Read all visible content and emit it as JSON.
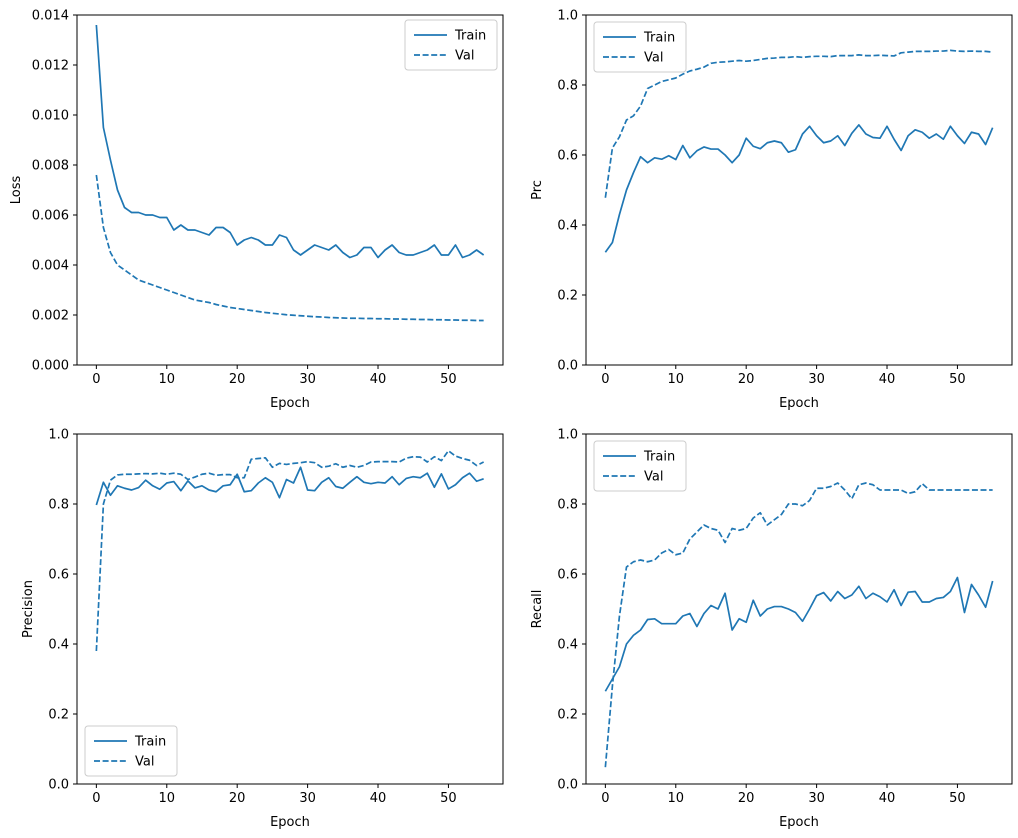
{
  "figure": {
    "background": "#ffffff",
    "line_color": "#1f77b4",
    "spine_color": "#000000",
    "legend_border_color": "#cccccc",
    "legend_background": "#ffffff",
    "train_label": "Train",
    "val_label": "Val"
  },
  "epochs": [
    0,
    1,
    2,
    3,
    4,
    5,
    6,
    7,
    8,
    9,
    10,
    11,
    12,
    13,
    14,
    15,
    16,
    17,
    18,
    19,
    20,
    21,
    22,
    23,
    24,
    25,
    26,
    27,
    28,
    29,
    30,
    31,
    32,
    33,
    34,
    35,
    36,
    37,
    38,
    39,
    40,
    41,
    42,
    43,
    44,
    45,
    46,
    47,
    48,
    49,
    50,
    51,
    52,
    53,
    54,
    55
  ],
  "chart_data": [
    {
      "type": "line",
      "title": "",
      "ylabel": "Loss",
      "xlabel": "Epoch",
      "ylim": [
        0,
        0.014
      ],
      "xlim": [
        -2.75,
        57.75
      ],
      "xticks": [
        0,
        10,
        20,
        30,
        40,
        50
      ],
      "xtick_labels": [
        "0",
        "10",
        "20",
        "30",
        "40",
        "50"
      ],
      "yticks": [
        0,
        0.002,
        0.004,
        0.006,
        0.008,
        0.01,
        0.012,
        0.014
      ],
      "ytick_labels": [
        "0.000",
        "0.002",
        "0.004",
        "0.006",
        "0.008",
        "0.010",
        "0.012",
        "0.014"
      ],
      "grid": false,
      "legend_position": "top-right",
      "legend_entries": [
        "Train",
        "Val"
      ],
      "series": [
        {
          "name": "Train",
          "style": "solid",
          "values": [
            0.0136,
            0.0095,
            0.0082,
            0.007,
            0.0063,
            0.0061,
            0.0061,
            0.006,
            0.006,
            0.0059,
            0.0059,
            0.0054,
            0.0056,
            0.0054,
            0.0054,
            0.0053,
            0.0052,
            0.0055,
            0.0055,
            0.0053,
            0.0048,
            0.005,
            0.0051,
            0.005,
            0.0048,
            0.0048,
            0.0052,
            0.0051,
            0.0046,
            0.0044,
            0.0046,
            0.0048,
            0.0047,
            0.0046,
            0.0048,
            0.0045,
            0.0043,
            0.0044,
            0.0047,
            0.0047,
            0.0043,
            0.0046,
            0.0048,
            0.0045,
            0.0044,
            0.0044,
            0.0045,
            0.0046,
            0.0048,
            0.0044,
            0.0044,
            0.0048,
            0.0043,
            0.0044,
            0.0046,
            0.0044
          ]
        },
        {
          "name": "Val",
          "style": "dashed",
          "values": [
            0.0076,
            0.0055,
            0.0045,
            0.004,
            0.0038,
            0.0036,
            0.0034,
            0.0033,
            0.0032,
            0.0031,
            0.003,
            0.0029,
            0.0028,
            0.0027,
            0.0026,
            0.00255,
            0.0025,
            0.00242,
            0.00236,
            0.0023,
            0.00226,
            0.00222,
            0.00218,
            0.00214,
            0.0021,
            0.00207,
            0.00204,
            0.00201,
            0.00199,
            0.00197,
            0.00195,
            0.00193,
            0.00192,
            0.0019,
            0.00189,
            0.00188,
            0.00187,
            0.00187,
            0.00186,
            0.00186,
            0.00185,
            0.00185,
            0.00184,
            0.00184,
            0.00183,
            0.00183,
            0.00182,
            0.00182,
            0.00181,
            0.00181,
            0.0018,
            0.0018,
            0.00179,
            0.00179,
            0.00178,
            0.00178
          ]
        }
      ]
    },
    {
      "type": "line",
      "title": "",
      "ylabel": "Prc",
      "xlabel": "Epoch",
      "ylim": [
        0,
        1.0
      ],
      "xlim": [
        -2.75,
        57.75
      ],
      "xticks": [
        0,
        10,
        20,
        30,
        40,
        50
      ],
      "xtick_labels": [
        "0",
        "10",
        "20",
        "30",
        "40",
        "50"
      ],
      "yticks": [
        0,
        0.2,
        0.4,
        0.6,
        0.8,
        1.0
      ],
      "ytick_labels": [
        "0.0",
        "0.2",
        "0.4",
        "0.6",
        "0.8",
        "1.0"
      ],
      "grid": false,
      "legend_position": "top-left",
      "legend_entries": [
        "Train",
        "Val"
      ],
      "series": [
        {
          "name": "Train",
          "style": "solid",
          "values": [
            0.322,
            0.35,
            0.43,
            0.5,
            0.55,
            0.595,
            0.578,
            0.592,
            0.588,
            0.598,
            0.587,
            0.627,
            0.592,
            0.612,
            0.623,
            0.617,
            0.617,
            0.6,
            0.578,
            0.6,
            0.648,
            0.625,
            0.618,
            0.635,
            0.64,
            0.635,
            0.608,
            0.615,
            0.66,
            0.682,
            0.655,
            0.635,
            0.64,
            0.655,
            0.627,
            0.662,
            0.686,
            0.66,
            0.65,
            0.648,
            0.682,
            0.645,
            0.613,
            0.655,
            0.672,
            0.665,
            0.648,
            0.66,
            0.645,
            0.682,
            0.655,
            0.633,
            0.665,
            0.66,
            0.63,
            0.678
          ]
        },
        {
          "name": "Val",
          "style": "dashed",
          "values": [
            0.478,
            0.62,
            0.652,
            0.7,
            0.712,
            0.74,
            0.79,
            0.8,
            0.81,
            0.815,
            0.82,
            0.831,
            0.84,
            0.845,
            0.851,
            0.862,
            0.865,
            0.866,
            0.868,
            0.87,
            0.868,
            0.87,
            0.873,
            0.876,
            0.877,
            0.879,
            0.879,
            0.881,
            0.879,
            0.881,
            0.882,
            0.882,
            0.881,
            0.884,
            0.884,
            0.884,
            0.886,
            0.884,
            0.884,
            0.885,
            0.884,
            0.883,
            0.892,
            0.894,
            0.896,
            0.896,
            0.896,
            0.897,
            0.897,
            0.899,
            0.897,
            0.896,
            0.897,
            0.896,
            0.896,
            0.894
          ]
        }
      ]
    },
    {
      "type": "line",
      "title": "",
      "ylabel": "Precision",
      "xlabel": "Epoch",
      "ylim": [
        0,
        1.0
      ],
      "xlim": [
        -2.75,
        57.75
      ],
      "xticks": [
        0,
        10,
        20,
        30,
        40,
        50
      ],
      "xtick_labels": [
        "0",
        "10",
        "20",
        "30",
        "40",
        "50"
      ],
      "yticks": [
        0,
        0.2,
        0.4,
        0.6,
        0.8,
        1.0
      ],
      "ytick_labels": [
        "0.0",
        "0.2",
        "0.4",
        "0.6",
        "0.8",
        "1.0"
      ],
      "grid": false,
      "legend_position": "bottom-left",
      "legend_entries": [
        "Train",
        "Val"
      ],
      "series": [
        {
          "name": "Train",
          "style": "solid",
          "values": [
            0.797,
            0.862,
            0.825,
            0.852,
            0.845,
            0.84,
            0.847,
            0.868,
            0.852,
            0.842,
            0.86,
            0.864,
            0.838,
            0.866,
            0.846,
            0.852,
            0.84,
            0.835,
            0.852,
            0.855,
            0.885,
            0.835,
            0.838,
            0.86,
            0.875,
            0.862,
            0.818,
            0.87,
            0.86,
            0.905,
            0.84,
            0.838,
            0.862,
            0.875,
            0.85,
            0.845,
            0.862,
            0.878,
            0.862,
            0.858,
            0.862,
            0.86,
            0.878,
            0.855,
            0.873,
            0.878,
            0.875,
            0.888,
            0.848,
            0.886,
            0.843,
            0.855,
            0.875,
            0.888,
            0.865,
            0.872
          ]
        },
        {
          "name": "Val",
          "style": "dashed",
          "values": [
            0.38,
            0.8,
            0.868,
            0.883,
            0.885,
            0.885,
            0.886,
            0.887,
            0.886,
            0.888,
            0.885,
            0.888,
            0.885,
            0.87,
            0.877,
            0.885,
            0.888,
            0.882,
            0.884,
            0.884,
            0.875,
            0.875,
            0.928,
            0.93,
            0.932,
            0.905,
            0.916,
            0.913,
            0.916,
            0.918,
            0.921,
            0.918,
            0.905,
            0.908,
            0.915,
            0.905,
            0.91,
            0.905,
            0.91,
            0.92,
            0.921,
            0.921,
            0.921,
            0.92,
            0.931,
            0.935,
            0.934,
            0.92,
            0.935,
            0.924,
            0.952,
            0.937,
            0.93,
            0.925,
            0.91,
            0.92
          ]
        }
      ]
    },
    {
      "type": "line",
      "title": "",
      "ylabel": "Recall",
      "xlabel": "Epoch",
      "ylim": [
        0,
        1.0
      ],
      "xlim": [
        -2.75,
        57.75
      ],
      "xticks": [
        0,
        10,
        20,
        30,
        40,
        50
      ],
      "xtick_labels": [
        "0",
        "10",
        "20",
        "30",
        "40",
        "50"
      ],
      "yticks": [
        0,
        0.2,
        0.4,
        0.6,
        0.8,
        1.0
      ],
      "ytick_labels": [
        "0.0",
        "0.2",
        "0.4",
        "0.6",
        "0.8",
        "1.0"
      ],
      "grid": false,
      "legend_position": "top-left",
      "legend_entries": [
        "Train",
        "Val"
      ],
      "series": [
        {
          "name": "Train",
          "style": "solid",
          "values": [
            0.265,
            0.3,
            0.335,
            0.4,
            0.425,
            0.44,
            0.47,
            0.472,
            0.458,
            0.458,
            0.458,
            0.48,
            0.487,
            0.45,
            0.487,
            0.51,
            0.5,
            0.545,
            0.44,
            0.472,
            0.462,
            0.525,
            0.48,
            0.5,
            0.507,
            0.507,
            0.5,
            0.49,
            0.465,
            0.5,
            0.538,
            0.547,
            0.523,
            0.55,
            0.53,
            0.54,
            0.565,
            0.53,
            0.545,
            0.535,
            0.52,
            0.555,
            0.51,
            0.548,
            0.55,
            0.52,
            0.52,
            0.53,
            0.533,
            0.55,
            0.59,
            0.49,
            0.57,
            0.54,
            0.505,
            0.58
          ]
        },
        {
          "name": "Val",
          "style": "dashed",
          "values": [
            0.048,
            0.28,
            0.48,
            0.62,
            0.635,
            0.64,
            0.635,
            0.64,
            0.66,
            0.67,
            0.655,
            0.66,
            0.7,
            0.72,
            0.74,
            0.73,
            0.725,
            0.69,
            0.73,
            0.725,
            0.73,
            0.76,
            0.775,
            0.74,
            0.755,
            0.77,
            0.8,
            0.8,
            0.795,
            0.81,
            0.845,
            0.845,
            0.85,
            0.86,
            0.84,
            0.815,
            0.855,
            0.86,
            0.855,
            0.84,
            0.84,
            0.84,
            0.84,
            0.83,
            0.835,
            0.858,
            0.84,
            0.84,
            0.84,
            0.84,
            0.84,
            0.84,
            0.84,
            0.84,
            0.84,
            0.84
          ]
        }
      ]
    }
  ]
}
